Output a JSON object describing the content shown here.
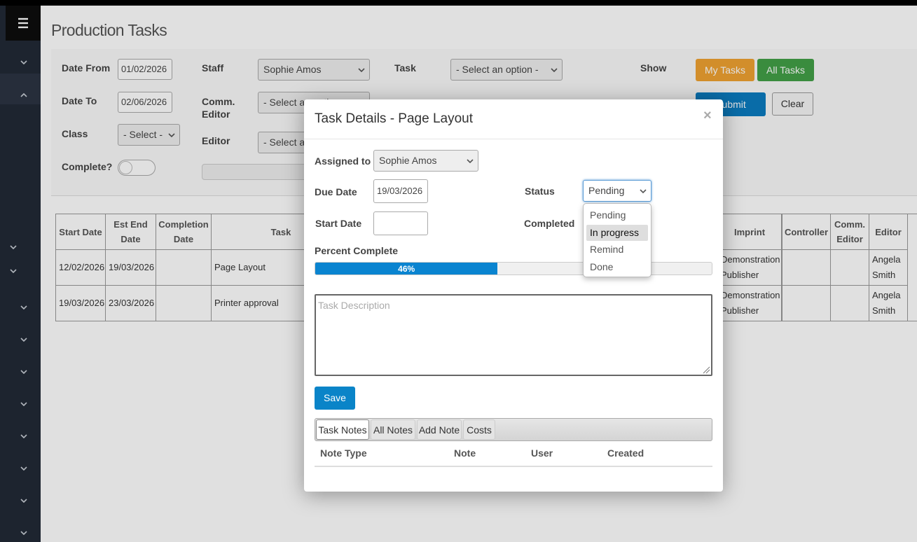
{
  "page": {
    "title": "Production Tasks"
  },
  "filters": {
    "date_from": {
      "label": "Date From",
      "value": "01/02/2026"
    },
    "staff": {
      "label": "Staff",
      "value": "Sophie Amos"
    },
    "task": {
      "label": "Task",
      "value": "- Select an option -"
    },
    "show": "Show",
    "my_tasks": "My Tasks",
    "all_tasks": "All Tasks",
    "date_to": {
      "label": "Date To",
      "value": "02/06/2026"
    },
    "comm_editor": {
      "label": "Comm. Editor",
      "value": "- Select an option -"
    },
    "submit": "Submit",
    "clear": "Clear",
    "class": {
      "label": "Class",
      "value": "- Select -"
    },
    "editor": {
      "label": "Editor",
      "value": "- Select an option -"
    },
    "complete": "Complete?"
  },
  "table": {
    "headers": {
      "start_date": "Start Date",
      "est_end_date": "Est End Date",
      "completion_date": "Completion Date",
      "task": "Task",
      "imprint": "Imprint",
      "controller": "Controller",
      "comm_editor": "Comm. Editor",
      "editor": "Editor"
    },
    "rows": [
      {
        "start_date": "12/02/2026",
        "est_end_date": "19/03/2026",
        "task": "Page Layout",
        "imprint": "Demonstration Publisher",
        "editor": "Angela Smith"
      },
      {
        "start_date": "19/03/2026",
        "est_end_date": "23/03/2026",
        "task": "Printer approval",
        "imprint": "Demonstration Publisher",
        "editor": "Angela Smith"
      }
    ]
  },
  "modal": {
    "title": "Task Details - Page Layout",
    "close": "×",
    "assigned_to": {
      "label": "Assigned to",
      "value": "Sophie Amos"
    },
    "due_date": {
      "label": "Due Date",
      "value": "19/03/2026"
    },
    "status": {
      "label": "Status",
      "value": "Pending",
      "options": [
        "Pending",
        "In progress",
        "Remind",
        "Done"
      ],
      "highlighted": 1
    },
    "start_date": {
      "label": "Start Date"
    },
    "completed": "Completed",
    "percent_complete": {
      "label": "Percent Complete",
      "value": 46,
      "value_label": "46%",
      "range": [
        0,
        100
      ]
    },
    "description_placeholder": "Task Description",
    "save": "Save",
    "tabs": [
      "Task Notes",
      "All Notes",
      "Add Note",
      "Costs"
    ],
    "active_tab": 0,
    "notes_headers": [
      "Note Type",
      "Note",
      "User",
      "Created"
    ]
  }
}
